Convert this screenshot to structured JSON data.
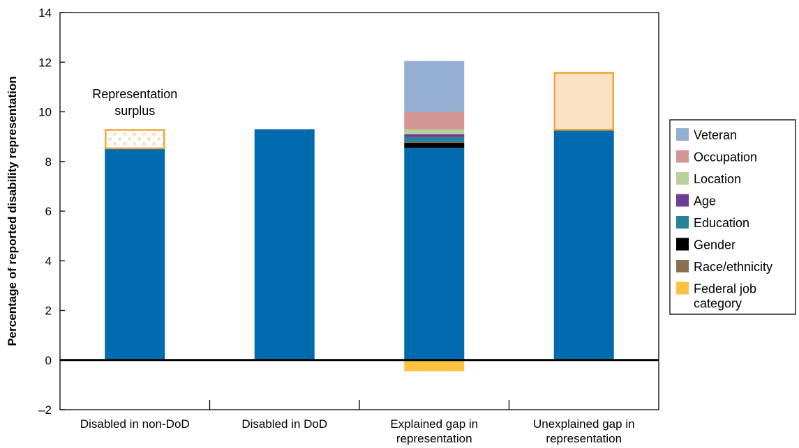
{
  "chart_data": {
    "type": "bar",
    "stacked": true,
    "ylabel": "Percentage of reported disability representation",
    "xlabel": "",
    "ylim": [
      -2,
      14
    ],
    "yticks": [
      -2,
      0,
      2,
      4,
      6,
      8,
      10,
      12,
      14
    ],
    "ytick_labels": [
      "–2",
      "0",
      "2",
      "4",
      "6",
      "8",
      "10",
      "12",
      "14"
    ],
    "grid": false,
    "legend_position": "right",
    "categories": [
      [
        "Disabled in non-DoD"
      ],
      [
        "Disabled in DoD"
      ],
      [
        "Explained gap in",
        "representation"
      ],
      [
        "Unexplained gap in",
        "representation"
      ]
    ],
    "bars": [
      {
        "base": 8.5,
        "segments": [
          {
            "series": "surplus",
            "from": 8.5,
            "to": 9.3
          }
        ]
      },
      {
        "base": 9.3,
        "segments": []
      },
      {
        "base": 8.55,
        "segments": [
          {
            "series": "Gender",
            "from": 8.55,
            "to": 8.75
          },
          {
            "series": "Race/ethnicity",
            "from": 8.75,
            "to": 8.78
          },
          {
            "series": "Education",
            "from": 8.78,
            "to": 8.98
          },
          {
            "series": "Age",
            "from": 8.98,
            "to": 9.1
          },
          {
            "series": "Location",
            "from": 9.1,
            "to": 9.3
          },
          {
            "series": "Occupation",
            "from": 9.3,
            "to": 10.0
          },
          {
            "series": "Veteran",
            "from": 10.0,
            "to": 12.05
          },
          {
            "series": "Federal job category",
            "from": -0.45,
            "to": 0
          }
        ]
      },
      {
        "base": 9.25,
        "segments": [
          {
            "series": "unexplained",
            "from": 9.25,
            "to": 11.6
          }
        ]
      }
    ],
    "legend": [
      {
        "lines": [
          "Veteran"
        ],
        "color": "#94aed2"
      },
      {
        "lines": [
          "Occupation"
        ],
        "color": "#d29695"
      },
      {
        "lines": [
          "Location"
        ],
        "color": "#b8d199"
      },
      {
        "lines": [
          "Age"
        ],
        "color": "#6c3c97"
      },
      {
        "lines": [
          "Education"
        ],
        "color": "#2a8299"
      },
      {
        "lines": [
          "Gender"
        ],
        "color": "#000000"
      },
      {
        "lines": [
          "Race/ethnicity"
        ],
        "color": "#8b7050"
      },
      {
        "lines": [
          "Federal job",
          "category"
        ],
        "color": "#fec23e"
      }
    ],
    "annotation": [
      "Representation",
      "surplus"
    ]
  },
  "colors": {
    "base_bar": "#006aae",
    "outline": "#f4a43a",
    "surplus_fill": "#ffffff",
    "surplus_dots": "#fbe1c4",
    "unexplained_fill": "#fbe1c4",
    "axis": "#000000"
  }
}
